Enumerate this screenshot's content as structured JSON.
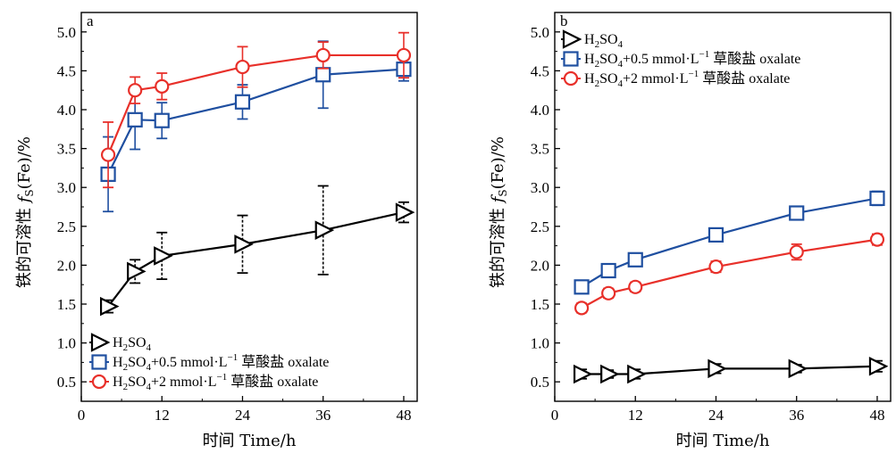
{
  "chart_data": [
    {
      "type": "line",
      "panel_label": "a",
      "xlabel": "时间  Time/h",
      "ylabel": "铁的可溶性  fS(Fe)/%",
      "xlim": [
        0,
        50
      ],
      "ylim": [
        0.25,
        5.25
      ],
      "xticks": [
        0,
        12,
        24,
        36,
        48
      ],
      "yticks": [
        0.5,
        1.0,
        1.5,
        2.0,
        2.5,
        3.0,
        3.5,
        4.0,
        4.5,
        5.0
      ],
      "grid": false,
      "legend_position": "bottom-left",
      "series": [
        {
          "name": "H2SO4",
          "color": "#000000",
          "marker": "triangle-right",
          "x": [
            4,
            8,
            12,
            24,
            36,
            48
          ],
          "y": [
            1.47,
            1.92,
            2.12,
            2.27,
            2.45,
            2.68
          ],
          "err": [
            0.08,
            0.15,
            0.3,
            0.37,
            0.57,
            0.13
          ]
        },
        {
          "name": "H2SO4+0.5 mmol·L−1 草酸盐  oxalate",
          "color": "#1f4fa0",
          "marker": "square",
          "x": [
            4,
            8,
            12,
            24,
            36,
            48
          ],
          "y": [
            3.17,
            3.87,
            3.86,
            4.1,
            4.45,
            4.52
          ],
          "err": [
            0.48,
            0.38,
            0.23,
            0.22,
            0.43,
            0.15
          ]
        },
        {
          "name": "H2SO4+2 mmol·L−1 草酸盐  oxalate",
          "color": "#e8302a",
          "marker": "circle",
          "x": [
            4,
            8,
            12,
            24,
            36,
            48
          ],
          "y": [
            3.42,
            4.25,
            4.3,
            4.55,
            4.7,
            4.7
          ],
          "err": [
            0.42,
            0.17,
            0.17,
            0.26,
            0.17,
            0.29
          ]
        }
      ]
    },
    {
      "type": "line",
      "panel_label": "b",
      "xlabel": "时间  Time/h",
      "ylabel": "铁的可溶性  fS(Fe)/%",
      "xlim": [
        0,
        50
      ],
      "ylim": [
        0.25,
        5.25
      ],
      "xticks": [
        0,
        12,
        24,
        36,
        48
      ],
      "yticks": [
        0.5,
        1.0,
        1.5,
        2.0,
        2.5,
        3.0,
        3.5,
        4.0,
        4.5,
        5.0
      ],
      "grid": false,
      "legend_position": "top-left",
      "series": [
        {
          "name": "H2SO4",
          "color": "#000000",
          "marker": "triangle-right",
          "x": [
            4,
            8,
            12,
            24,
            36,
            48
          ],
          "y": [
            0.6,
            0.6,
            0.6,
            0.67,
            0.67,
            0.7
          ],
          "err": [
            0.06,
            0.05,
            0.06,
            0.06,
            0.05,
            0.07
          ]
        },
        {
          "name": "H2SO4+0.5 mmol·L−1 草酸盐  oxalate",
          "color": "#1f4fa0",
          "marker": "square",
          "x": [
            4,
            8,
            12,
            24,
            36,
            48
          ],
          "y": [
            1.72,
            1.93,
            2.07,
            2.39,
            2.67,
            2.86
          ],
          "err": [
            0.05,
            0.06,
            0.05,
            0.07,
            0.07,
            0.09
          ]
        },
        {
          "name": "H2SO4+2 mmol·L−1 草酸盐  oxalate",
          "color": "#e8302a",
          "marker": "circle",
          "x": [
            4,
            8,
            12,
            24,
            36,
            48
          ],
          "y": [
            1.45,
            1.64,
            1.72,
            1.98,
            2.17,
            2.33
          ],
          "err": [
            0.06,
            0.06,
            0.06,
            0.07,
            0.1,
            0.07
          ]
        }
      ]
    }
  ]
}
